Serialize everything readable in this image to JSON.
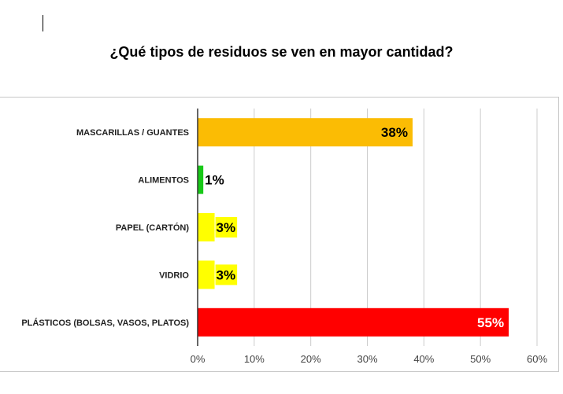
{
  "title": "¿Qué tipos de residuos se ven en mayor cantidad?",
  "chart_data": {
    "type": "bar",
    "orientation": "horizontal",
    "title": "¿Qué tipos de residuos se ven en mayor cantidad?",
    "categories": [
      "MASCARILLAS / GUANTES",
      "ALIMENTOS",
      "PAPEL (CARTÓN)",
      "VIDRIO",
      "PLÁSTICOS (BOLSAS, VASOS, PLATOS)"
    ],
    "values": [
      38,
      1,
      3,
      3,
      55
    ],
    "data_labels": [
      "38%",
      "1%",
      "3%",
      "3%",
      "55%"
    ],
    "colors": [
      "#fbbc04",
      "#18c918",
      "#ffff00",
      "#ffff00",
      "#ff0000"
    ],
    "label_colors": [
      "#000000",
      "#000000",
      "#000000",
      "#000000",
      "#ffffff"
    ],
    "label_highlight": [
      "",
      "",
      "#ffff00",
      "#ffff00",
      ""
    ],
    "xlim": [
      0,
      60
    ],
    "xticks": [
      0,
      10,
      20,
      30,
      40,
      50,
      60
    ],
    "xtick_labels": [
      "0%",
      "10%",
      "20%",
      "30%",
      "40%",
      "50%",
      "60%"
    ],
    "grid": true,
    "legend": "none"
  }
}
